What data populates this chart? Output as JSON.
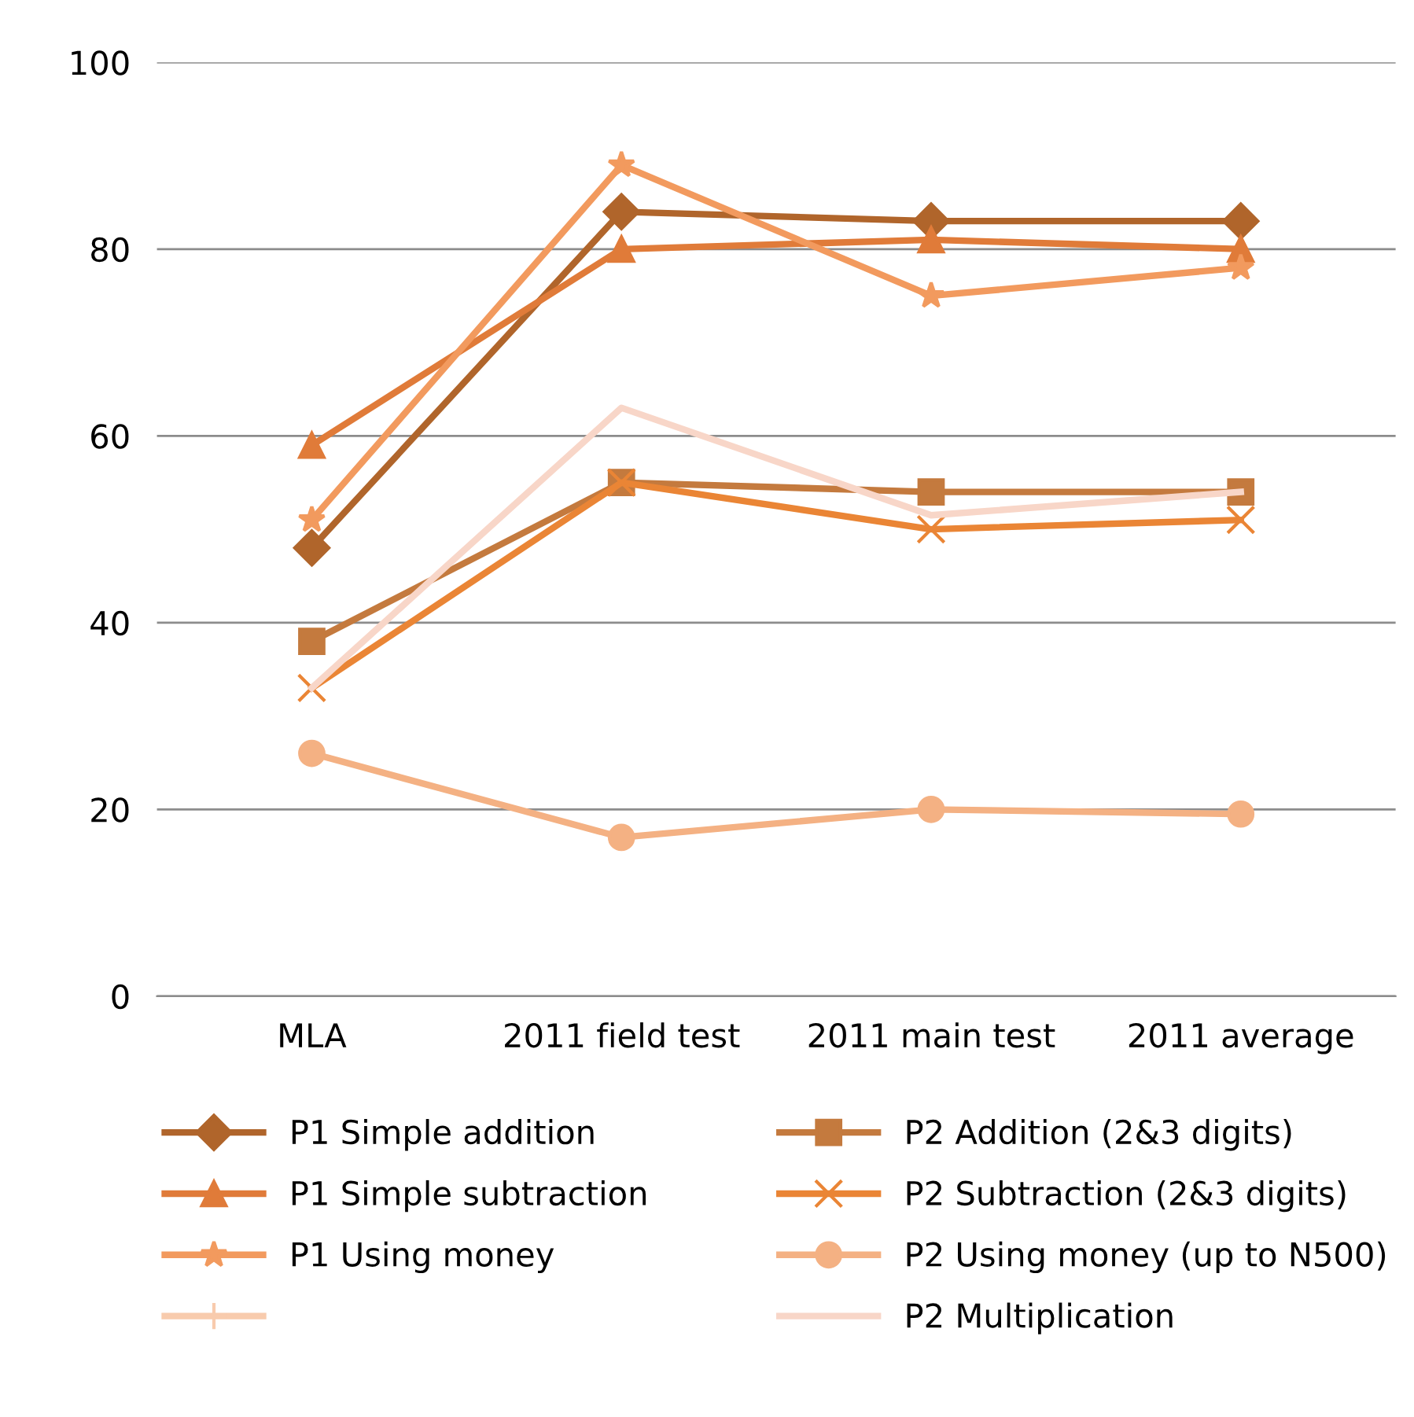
{
  "chart_data": {
    "type": "line",
    "categories": [
      "MLA",
      "2011 field test",
      "2011 main test",
      "2011 average"
    ],
    "series": [
      {
        "name": "P1 Simple addition",
        "color": "#b0652b",
        "marker": "diamond",
        "values": [
          48,
          84,
          83,
          83
        ]
      },
      {
        "name": "P2 Addition (2&3 digits)",
        "color": "#c47a3e",
        "marker": "square",
        "values": [
          38,
          55,
          54,
          54
        ]
      },
      {
        "name": "P1 Simple subtraction",
        "color": "#e07b39",
        "marker": "triangle",
        "values": [
          59,
          80,
          81,
          80
        ]
      },
      {
        "name": "P2 Subtraction (2&3 digits)",
        "color": "#ea8535",
        "marker": "cross",
        "values": [
          33,
          55,
          50,
          51
        ]
      },
      {
        "name": "P1 Using money",
        "color": "#f29a5e",
        "marker": "star",
        "values": [
          51,
          89,
          75,
          78
        ]
      },
      {
        "name": "P2 Using money (up to N500)",
        "color": "#f4b183",
        "marker": "circle",
        "values": [
          26,
          17,
          20,
          19.5
        ]
      },
      {
        "color": "#f8cbad",
        "marker": "plus",
        "values": [
          null,
          null,
          null,
          null
        ]
      },
      {
        "name": "P2 Multiplication",
        "color": "#f8d6c8",
        "marker": "none",
        "values": [
          33,
          63,
          51.5,
          54
        ]
      }
    ],
    "ylim": [
      0,
      100
    ],
    "yticks": [
      0,
      20,
      40,
      60,
      80,
      100
    ],
    "grid": "y",
    "legend": "bottom"
  }
}
